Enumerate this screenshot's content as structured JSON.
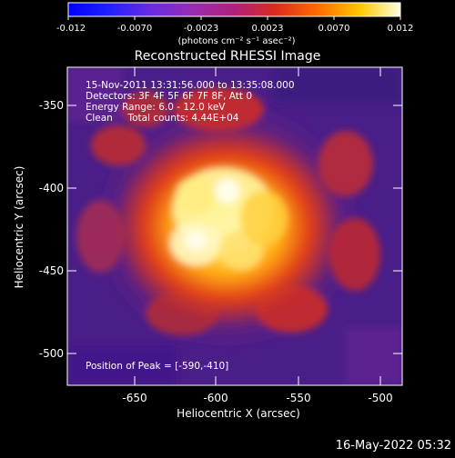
{
  "colorbar": {
    "tick_labels": [
      "-0.012",
      "-0.0070",
      "-0.0023",
      "0.0023",
      "0.0070",
      "0.012"
    ],
    "unit_label": "(photons cm⁻² s⁻¹ asec⁻²)"
  },
  "plot": {
    "title": "Reconstructed RHESSI Image",
    "xlabel": "Heliocentric X (arcsec)",
    "ylabel": "Heliocentric Y (arcsec)",
    "x_ticks": [
      "-650",
      "-600",
      "-550",
      "-500"
    ],
    "y_ticks": [
      "-350",
      "-400",
      "-450",
      "-500"
    ],
    "info_lines": [
      "15-Nov-2011 13:31:56.000 to 13:35:08.000",
      "Detectors: 3F 4F 5F 6F 7F 8F, Att 0",
      "Energy Range: 6.0 - 12.0 keV",
      "Clean     Total counts: 4.44E+04"
    ],
    "peak_label": "Position of Peak = [-590,-410]"
  },
  "footer": {
    "timestamp": "16-May-2022 05:32"
  },
  "colors": {
    "background": "#000000",
    "image_low": "#4a1a90",
    "image_mid": "#cc2a1a",
    "image_high": "#fffae0"
  }
}
